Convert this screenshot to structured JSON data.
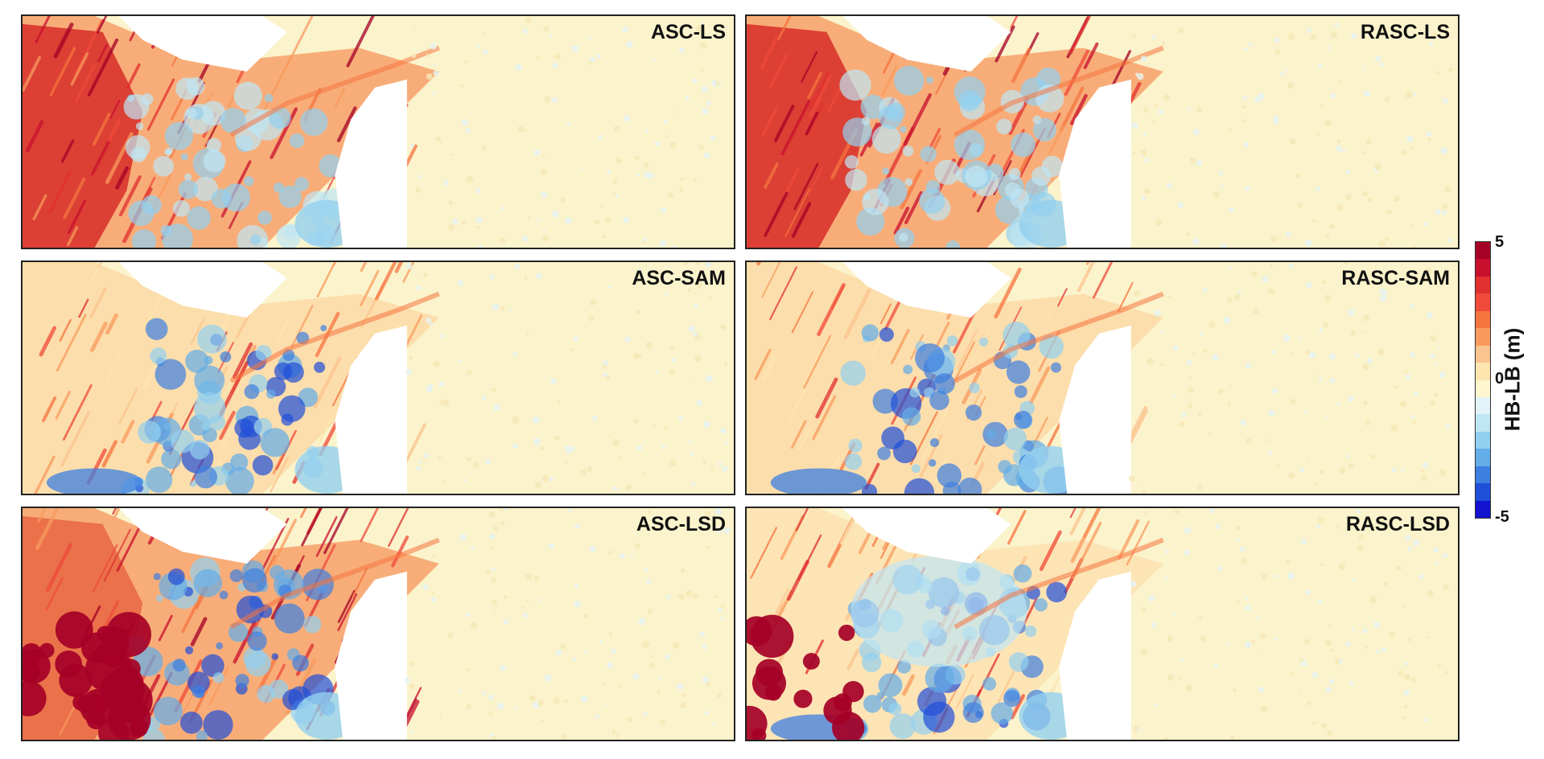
{
  "panels": [
    {
      "label": "ASC-LS",
      "variant": "hot"
    },
    {
      "label": "RASC-LS",
      "variant": "hot"
    },
    {
      "label": "ASC-SAM",
      "variant": "mixed"
    },
    {
      "label": "RASC-SAM",
      "variant": "mixed"
    },
    {
      "label": "ASC-LSD",
      "variant": "hot-blobs"
    },
    {
      "label": "RASC-LSD",
      "variant": "cool-blobs"
    }
  ],
  "colorbar": {
    "title": "HB-LB (m)",
    "tick_max": "5",
    "tick_mid": "0",
    "tick_min": "-5",
    "range": [
      -5,
      5
    ],
    "colors": [
      "#a50026",
      "#c8102e",
      "#e0302f",
      "#f04a3a",
      "#f6743f",
      "#f99b5e",
      "#fbc48e",
      "#fde5b0",
      "#fdf6cf",
      "#e3f4f8",
      "#bfe6f3",
      "#93d0ef",
      "#63ade8",
      "#3d7fe0",
      "#1f4fd8",
      "#1212cf"
    ]
  }
}
